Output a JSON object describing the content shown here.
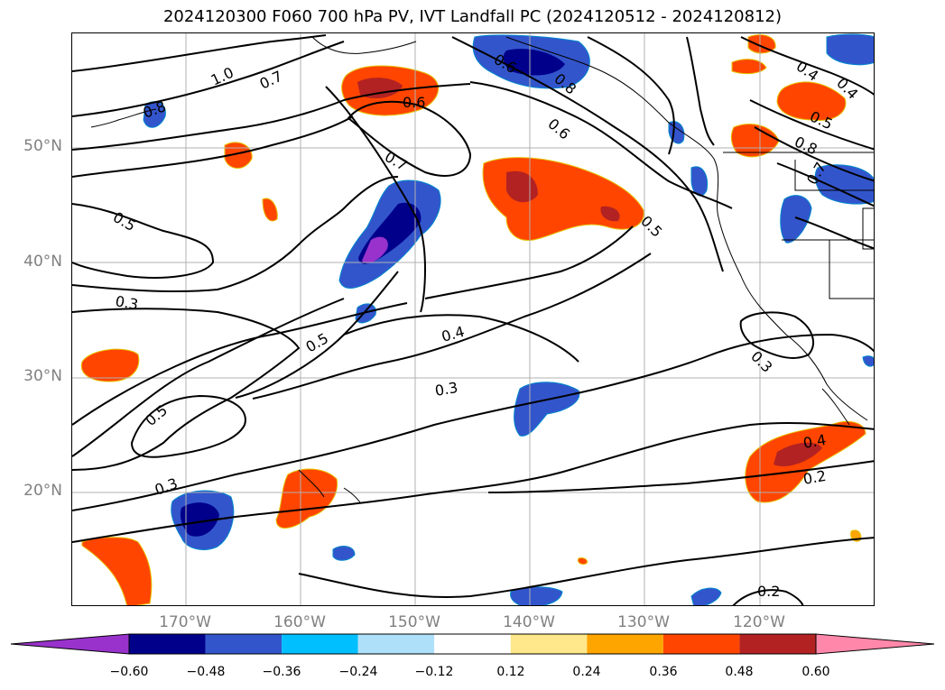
{
  "title": "2024120300 F060 700 hPa PV, IVT Landfall PC (2024120512 - 2024120812)",
  "map": {
    "latitude_labels": [
      "50°N",
      "40°N",
      "30°N",
      "20°N"
    ],
    "longitude_labels": [
      "170°W",
      "160°W",
      "150°W",
      "140°W",
      "130°W",
      "120°W"
    ],
    "contour_labels": [
      "1.0",
      "0.7",
      "0.8",
      "0.6",
      "0.6",
      "0.6",
      "0.8",
      "0.4",
      "0.4",
      "0.5",
      "0.8",
      "0.7",
      "0.7",
      "0.5",
      "0.5",
      "0.3",
      "0.5",
      "0.4",
      "0.3",
      "0.5",
      "0.3",
      "0.3",
      "0.4",
      "0.2",
      "0.2"
    ]
  },
  "colorbar": {
    "ticks": [
      "−0.60",
      "−0.48",
      "−0.36",
      "−0.24",
      "−0.12",
      "0.12",
      "0.24",
      "0.36",
      "0.48",
      "0.60"
    ],
    "colors": [
      "#9932cc",
      "#00008b",
      "#3355cc",
      "#00bfff",
      "#aee0fa",
      "#ffffff",
      "#ffe88c",
      "#ffa500",
      "#ff4500",
      "#b22222",
      "#ff88aa"
    ]
  }
}
